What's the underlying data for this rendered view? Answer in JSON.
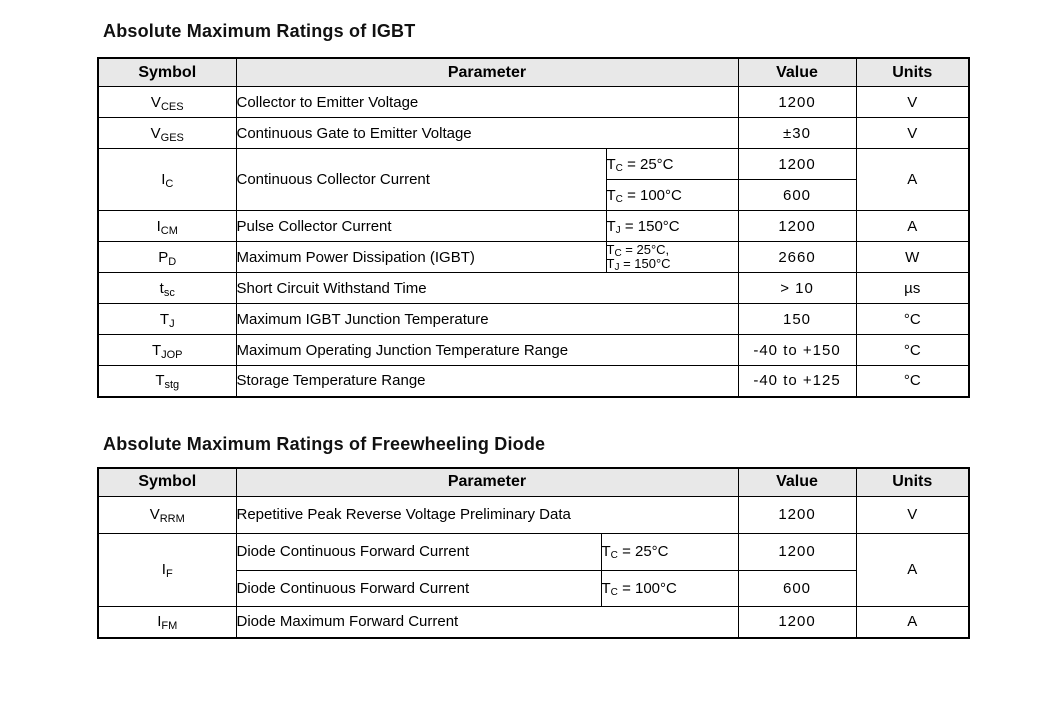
{
  "colors": {
    "border": "#000000",
    "header_bg": "#e8e8e8",
    "text": "#000000",
    "background": "#ffffff"
  },
  "tables": [
    {
      "title": "Absolute Maximum Ratings of IGBT",
      "headers": {
        "symbol": "Symbol",
        "parameter": "Parameter",
        "value": "Value",
        "units": "Units"
      },
      "rows": [
        {
          "symbol": "V~CES~",
          "parameter": "Collector to Emitter Voltage",
          "value": "1200",
          "units": "V"
        },
        {
          "symbol": "V~GES~",
          "parameter": "Continuous Gate to Emitter Voltage",
          "value": "±30",
          "units": "V"
        },
        {
          "symbol": "I~C~",
          "parameter": "Continuous Collector Current",
          "units": "A",
          "sub": [
            {
              "condition": "T~C~ = 25°C",
              "value": "1200"
            },
            {
              "condition": "T~C~ = 100°C",
              "value": "600"
            }
          ]
        },
        {
          "symbol": "I~CM~",
          "parameter": "Pulse Collector Current",
          "condition": "T~J~ = 150°C",
          "value": "1200",
          "units": "A"
        },
        {
          "symbol": "P~D~",
          "parameter": "Maximum Power Dissipation (IGBT)",
          "condition": "T~C~ = 25°C,\nT~J~ = 150°C",
          "value": "2660",
          "units": "W"
        },
        {
          "symbol": "t~sc~",
          "parameter": "Short Circuit Withstand Time",
          "value": "> 10",
          "units": "µs"
        },
        {
          "symbol": "T~J~",
          "parameter": "Maximum IGBT Junction Temperature",
          "value": "150",
          "units": "°C"
        },
        {
          "symbol": "T~JOP~",
          "parameter": "Maximum Operating Junction Temperature Range",
          "value": "-40 to +150",
          "units": "°C"
        },
        {
          "symbol": "T~stg~",
          "parameter": "Storage Temperature Range",
          "value": "-40 to +125",
          "units": "°C"
        }
      ]
    },
    {
      "title": "Absolute Maximum Ratings of Freewheeling Diode",
      "headers": {
        "symbol": "Symbol",
        "parameter": "Parameter",
        "value": "Value",
        "units": "Units"
      },
      "rows": [
        {
          "symbol": "V~RRM~",
          "parameter": "Repetitive Peak Reverse Voltage Preliminary Data",
          "value": "1200",
          "units": "V"
        },
        {
          "symbol": "I~F~",
          "units": "A",
          "sub": [
            {
              "parameter": "Diode Continuous Forward Current",
              "condition": "T~C~ = 25°C",
              "value": "1200"
            },
            {
              "parameter": "Diode Continuous Forward Current",
              "condition": "T~C~ = 100°C",
              "value": "600"
            }
          ]
        },
        {
          "symbol": "I~FM~",
          "parameter": "Diode Maximum Forward Current",
          "value": "1200",
          "units": "A"
        }
      ]
    }
  ]
}
